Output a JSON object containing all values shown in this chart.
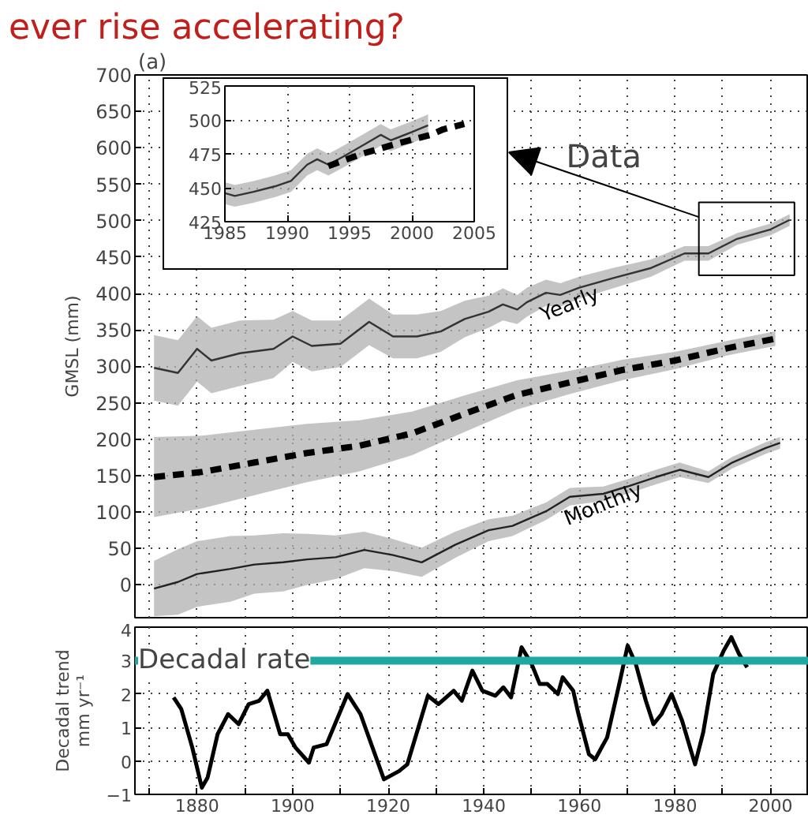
{
  "chart_data": [
    {
      "type": "line",
      "title": "ever rise accelerating?",
      "ylabel": "GMSL (mm)",
      "annotations": [
        "(a)",
        "Data"
      ],
      "xlim": [
        1867,
        2008
      ],
      "xticks": [
        1870,
        1880,
        1890,
        1900,
        1910,
        1920,
        1930,
        1940,
        1950,
        1960,
        1970,
        1980,
        1990,
        2000
      ],
      "ylim": [
        -45,
        700
      ],
      "yticks": [
        0,
        50,
        100,
        150,
        200,
        250,
        300,
        350,
        400,
        450,
        500,
        550,
        600,
        650,
        700
      ],
      "tick_labels": "y",
      "grid": true,
      "series": [
        {
          "name": "Yearly",
          "color": "#333333",
          "line_style": "solid",
          "x": [
            1871,
            1876,
            1880,
            1883,
            1889,
            1896,
            1900,
            1904,
            1910,
            1916,
            1921,
            1926,
            1931,
            1936,
            1941,
            1944,
            1947,
            1949,
            1953,
            1956,
            1960,
            1967,
            1975,
            1982,
            1987,
            1993,
            2000,
            2004
          ],
          "values": [
            298,
            291,
            324,
            308,
            318,
            324,
            341,
            328,
            331,
            361,
            341,
            341,
            348,
            365,
            375,
            385,
            378,
            388,
            401,
            398,
            408,
            421,
            435,
            455,
            455,
            475,
            488,
            501
          ],
          "lower": [
            253,
            246,
            279,
            263,
            273,
            284,
            306,
            293,
            299,
            329,
            311,
            311,
            320,
            340,
            353,
            363,
            358,
            368,
            383,
            382,
            393,
            407,
            423,
            445,
            445,
            467,
            480,
            493
          ],
          "upper": [
            343,
            336,
            369,
            353,
            363,
            364,
            376,
            363,
            363,
            393,
            371,
            371,
            376,
            390,
            397,
            407,
            398,
            408,
            419,
            414,
            423,
            435,
            447,
            465,
            465,
            483,
            496,
            509
          ]
        },
        {
          "color": "#000000",
          "line_style": "dashed",
          "x": [
            1871,
            1881,
            1892,
            1903,
            1914,
            1925,
            1936,
            1947,
            1958,
            1969,
            1980,
            1991,
            2001
          ],
          "values": [
            148,
            155,
            168,
            181,
            191,
            208,
            235,
            261,
            278,
            295,
            308,
            325,
            338
          ],
          "lower": [
            93,
            105,
            123,
            141,
            156,
            178,
            210,
            241,
            262,
            281,
            296,
            315,
            328
          ],
          "upper": [
            203,
            205,
            213,
            221,
            226,
            238,
            260,
            281,
            294,
            309,
            320,
            335,
            348
          ]
        },
        {
          "name": "Monthly",
          "color": "#222222",
          "line_style": "solid",
          "x": [
            1871,
            1876,
            1880,
            1887,
            1892,
            1898,
            1903,
            1909,
            1915,
            1921,
            1927,
            1934,
            1941,
            1946,
            1953,
            1958,
            1965,
            1970,
            1976,
            1981,
            1987,
            1992,
            1999,
            2002
          ],
          "values": [
            -5,
            4,
            15,
            22,
            28,
            31,
            35,
            38,
            48,
            41,
            31,
            55,
            75,
            81,
            101,
            121,
            125,
            135,
            148,
            158,
            148,
            168,
            188,
            195
          ],
          "lower": [
            -43,
            -41,
            -30,
            -23,
            -12,
            -9,
            0,
            8,
            23,
            19,
            11,
            37,
            60,
            67,
            89,
            109,
            115,
            125,
            138,
            148,
            140,
            160,
            180,
            187
          ],
          "upper": [
            33,
            49,
            60,
            67,
            68,
            71,
            70,
            68,
            73,
            63,
            51,
            73,
            90,
            95,
            113,
            133,
            135,
            145,
            158,
            168,
            156,
            176,
            196,
            203
          ]
        }
      ]
    },
    {
      "type": "line",
      "xlim": [
        1985,
        2005
      ],
      "xticks": [
        1985,
        1990,
        1995,
        2000,
        2005
      ],
      "ylim": [
        425,
        525
      ],
      "yticks": [
        425,
        450,
        475,
        500,
        525
      ],
      "grid": true,
      "series": [
        {
          "color": "#333333",
          "line_style": "solid",
          "x": [
            1985,
            1985.8,
            1987.3,
            1989,
            1990.3,
            1991.6,
            1992.4,
            1993.3,
            1994.5,
            1996.2,
            1997.5,
            1998.3,
            2000,
            2001.3
          ],
          "values": [
            446,
            444,
            447,
            451,
            455,
            467,
            471,
            467,
            473,
            482,
            489,
            485,
            491,
            496
          ],
          "lower": [
            438,
            436,
            439,
            443,
            447,
            459,
            463,
            459,
            465,
            474,
            481,
            477,
            483,
            488
          ],
          "upper": [
            454,
            452,
            455,
            459,
            463,
            475,
            479,
            475,
            481,
            490,
            497,
            493,
            499,
            504
          ]
        },
        {
          "color": "#000000",
          "line_style": "dashed",
          "x": [
            1993.3,
            1996,
            1999,
            2001.5,
            2002.5,
            2004.2
          ],
          "values": [
            466,
            475,
            483,
            489,
            493,
            497
          ]
        }
      ]
    },
    {
      "type": "line",
      "ylabel": "Decadal trend\nmm yr⁻¹",
      "xlim": [
        1867,
        2008
      ],
      "xticks": [
        {
          "value": 1870,
          "label": null
        },
        1880,
        {
          "value": 1890,
          "label": null
        },
        1900,
        {
          "value": 1910,
          "label": null
        },
        1920,
        {
          "value": 1930,
          "label": null
        },
        1940,
        {
          "value": 1950,
          "label": null
        },
        1960,
        {
          "value": 1970,
          "label": null
        },
        1980,
        {
          "value": 1990,
          "label": null
        },
        2000
      ],
      "ylim": [
        -1,
        4
      ],
      "yticks": [
        -1,
        0,
        1,
        2,
        3,
        4
      ],
      "grid": true,
      "ref_lines": [
        {
          "axis": "y",
          "value": 3,
          "label": "Decadal rate",
          "color": "#1fa8a0"
        }
      ],
      "series": [
        {
          "color": "#000000",
          "line_style": "solid",
          "x": [
            1875.1,
            1876.7,
            1879.0,
            1881.0,
            1882.2,
            1884.3,
            1886.5,
            1888.7,
            1890.8,
            1893.0,
            1894.7,
            1897.4,
            1899.0,
            1900.6,
            1903.4,
            1904.4,
            1907.1,
            1911.5,
            1914.2,
            1919.1,
            1922.3,
            1924.0,
            1928.3,
            1930.5,
            1933.7,
            1935.4,
            1937.6,
            1939.7,
            1942.4,
            1944.1,
            1945.7,
            1947.9,
            1950.0,
            1951.7,
            1953.3,
            1955.5,
            1956.5,
            1958.7,
            1959.8,
            1962.0,
            1963.3,
            1965.8,
            1968.5,
            1970.1,
            1971.8,
            1973.9,
            1975.5,
            1977.2,
            1979.3,
            1981.5,
            1984.2,
            1985.9,
            1988.0,
            1990.2,
            1991.8,
            1993.4,
            1995.1
          ],
          "values": [
            1.9,
            1.55,
            0.4,
            -0.8,
            -0.5,
            0.8,
            1.4,
            1.1,
            1.7,
            1.8,
            2.1,
            0.8,
            0.8,
            0.4,
            -0.05,
            0.4,
            0.5,
            2.0,
            1.4,
            -0.55,
            -0.3,
            -0.1,
            1.95,
            1.7,
            2.1,
            1.8,
            2.7,
            2.1,
            1.95,
            2.2,
            1.9,
            3.4,
            2.9,
            2.3,
            2.3,
            2.0,
            2.5,
            2.1,
            1.4,
            0.2,
            0.05,
            0.7,
            2.4,
            3.45,
            2.9,
            1.8,
            1.1,
            1.4,
            2.0,
            1.2,
            -0.1,
            0.85,
            2.6,
            3.3,
            3.7,
            3.2,
            2.8
          ]
        }
      ]
    }
  ]
}
